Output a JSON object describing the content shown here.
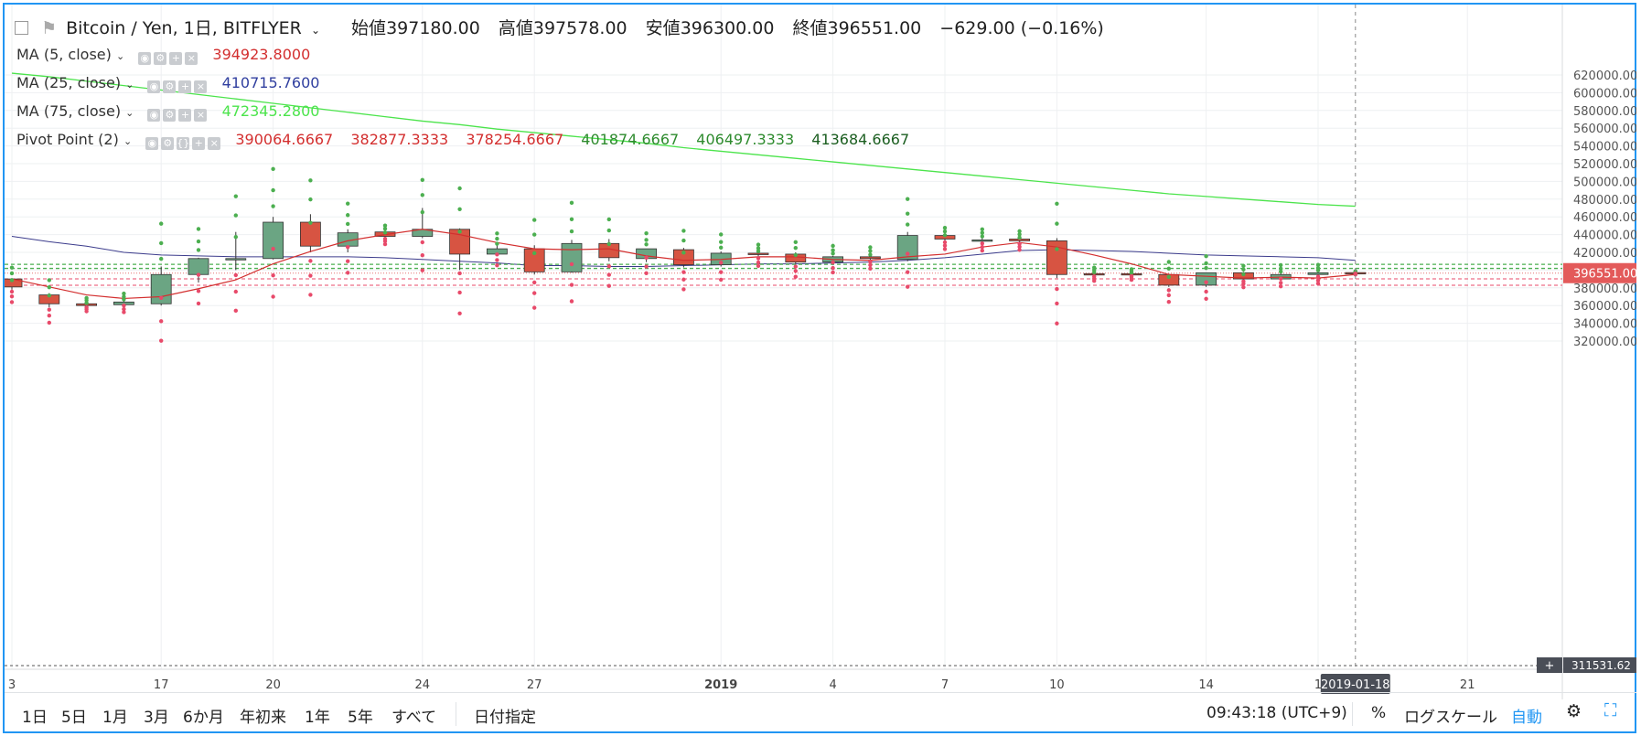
{
  "header": {
    "symbol": "Bitcoin / Yen, 1日, BITFLYER",
    "open_label": "始値",
    "open": "397180.00",
    "high_label": "高値",
    "high": "397578.00",
    "low_label": "安値",
    "low": "396300.00",
    "close_label": "終値",
    "close": "396551.00",
    "change": "−629.00 (−0.16%)"
  },
  "indicators": [
    {
      "label": "MA (5, close)",
      "values": [
        "394923.8000"
      ],
      "colors": [
        "#d32f2f"
      ]
    },
    {
      "label": "MA (25, close)",
      "values": [
        "410715.7600"
      ],
      "colors": [
        "#303f9f"
      ]
    },
    {
      "label": "MA (75, close)",
      "values": [
        "472345.2800"
      ],
      "colors": [
        "#4ce44c"
      ]
    },
    {
      "label": "Pivot Point (2)",
      "values": [
        "390064.6667",
        "382877.3333",
        "378254.6667",
        "401874.6667",
        "406497.3333",
        "413684.6667"
      ],
      "colors": [
        "#d32f2f",
        "#d32f2f",
        "#d32f2f",
        "#2e8b2e",
        "#2e8b2e",
        "#1b5e20"
      ]
    }
  ],
  "bottom": {
    "ranges": [
      "1日",
      "5日",
      "1月",
      "3月",
      "6か月",
      "年初来",
      "1年",
      "5年",
      "すべて"
    ],
    "date_range": "日付指定",
    "clock": "09:43:18 (UTC+9)",
    "percent": "%",
    "log": "ログスケール",
    "auto": "自動"
  },
  "chart_data": {
    "type": "candlestick",
    "colors": {
      "up": "#6ba583",
      "down": "#d75442",
      "ma5": "#d32f2f",
      "ma25": "#3c3c8c",
      "ma75": "#4ce44c",
      "pivot_support": "#e84a6a",
      "pivot_resistance": "#4caf50"
    },
    "y_ticks": [
      320000,
      340000,
      360000,
      380000,
      400000,
      420000,
      440000,
      460000,
      480000,
      500000,
      520000,
      540000,
      560000,
      580000,
      600000,
      620000
    ],
    "y_tick_labels": [
      "320000.00",
      "340000.00",
      "360000.00",
      "380000.00",
      "400000.00",
      "420000.00",
      "440000.00",
      "460000.00",
      "480000.00",
      "500000.00",
      "520000.00",
      "540000.00",
      "560000.00",
      "580000.00",
      "600000.00",
      "620000.00"
    ],
    "x_labels": [
      {
        "i": 0,
        "text": "3"
      },
      {
        "i": 4,
        "text": "17"
      },
      {
        "i": 7,
        "text": "20"
      },
      {
        "i": 11,
        "text": "24"
      },
      {
        "i": 14,
        "text": "27"
      },
      {
        "i": 19,
        "text": "2019",
        "bold": true
      },
      {
        "i": 22,
        "text": "4"
      },
      {
        "i": 25,
        "text": "7"
      },
      {
        "i": 28,
        "text": "10"
      },
      {
        "i": 32,
        "text": "14"
      },
      {
        "i": 35,
        "text": "1"
      },
      {
        "i": 39,
        "text": "21"
      }
    ],
    "last_price_label": "396551.00",
    "last_price": 396551,
    "cursor_date": "2019-01-18",
    "cursor_price_label": "311531.62",
    "candles": [
      [
        390000,
        391000,
        378000,
        381000
      ],
      [
        372000,
        374000,
        358000,
        362000
      ],
      [
        362000,
        364000,
        359000,
        360000
      ],
      [
        361000,
        366000,
        359000,
        364000
      ],
      [
        362000,
        404000,
        360000,
        395000
      ],
      [
        395000,
        414000,
        386000,
        413000
      ],
      [
        412000,
        443000,
        400000,
        413000
      ],
      [
        413000,
        460000,
        412000,
        454000
      ],
      [
        454000,
        463000,
        420000,
        427000
      ],
      [
        427000,
        446000,
        420000,
        442000
      ],
      [
        443000,
        444000,
        437000,
        438000
      ],
      [
        438000,
        470000,
        436000,
        446000
      ],
      [
        446000,
        447000,
        400000,
        418000
      ],
      [
        418000,
        429000,
        417000,
        424000
      ],
      [
        424000,
        428000,
        395000,
        398000
      ],
      [
        398000,
        434000,
        397000,
        430000
      ],
      [
        430000,
        435000,
        410000,
        414000
      ],
      [
        413000,
        424000,
        409000,
        424000
      ],
      [
        423000,
        425000,
        403000,
        406000
      ],
      [
        406000,
        421000,
        404000,
        419000
      ],
      [
        419000,
        420000,
        412000,
        418000
      ],
      [
        418000,
        420000,
        407000,
        409000
      ],
      [
        409000,
        416000,
        406000,
        415000
      ],
      [
        415000,
        418000,
        410000,
        413000
      ],
      [
        412000,
        443000,
        410000,
        439000
      ],
      [
        439000,
        440000,
        432000,
        435000
      ],
      [
        434000,
        438000,
        430000,
        434000
      ],
      [
        435000,
        437000,
        430000,
        433000
      ],
      [
        433000,
        436000,
        391000,
        395000
      ],
      [
        396000,
        398000,
        393000,
        395000
      ],
      [
        396000,
        397000,
        393000,
        395000
      ],
      [
        395000,
        396000,
        381000,
        383000
      ],
      [
        383000,
        397000,
        381000,
        397000
      ],
      [
        397000,
        398000,
        390000,
        390000
      ],
      [
        390000,
        397000,
        389000,
        395000
      ],
      [
        395000,
        398000,
        391000,
        397000
      ],
      [
        397180,
        397578,
        396300,
        396551
      ]
    ],
    "ma5": [
      390000,
      381000,
      372000,
      368000,
      370000,
      379000,
      389000,
      407000,
      421000,
      433000,
      440000,
      446000,
      440000,
      431000,
      424000,
      423000,
      424000,
      416000,
      411000,
      412000,
      415000,
      415000,
      412000,
      411000,
      415000,
      418000,
      426000,
      431000,
      426000,
      417000,
      407000,
      395000,
      393000,
      391000,
      392000,
      391000,
      395000
    ],
    "ma25": [
      438000,
      432000,
      427000,
      420000,
      417000,
      416000,
      415000,
      415000,
      415000,
      415000,
      414000,
      412000,
      410000,
      408000,
      405000,
      405000,
      404000,
      404000,
      405000,
      406000,
      407000,
      407000,
      408000,
      409000,
      411000,
      414000,
      418000,
      422000,
      423000,
      422000,
      421000,
      419000,
      417000,
      416000,
      415000,
      414000,
      411000
    ],
    "ma75": [
      622000,
      618000,
      613000,
      608000,
      603000,
      598000,
      593000,
      588000,
      583000,
      578000,
      573000,
      568000,
      564000,
      559000,
      555000,
      551000,
      547000,
      543000,
      538000,
      534000,
      530000,
      526000,
      522000,
      518000,
      514000,
      510000,
      506000,
      502000,
      498000,
      494000,
      490000,
      486000,
      483000,
      480000,
      477000,
      474000,
      472000
    ],
    "pivot_support_levels": [
      390064.6667,
      382877.3333
    ],
    "pivot_resistance_levels": [
      401874.6667,
      406497.3333
    ]
  }
}
